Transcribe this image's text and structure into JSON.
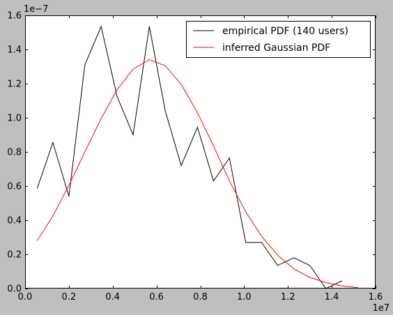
{
  "figure": {
    "background": "#bfbfbf",
    "axes_background": "#ffffff"
  },
  "chart_data": {
    "type": "line",
    "title": "",
    "xlabel": "",
    "ylabel": "",
    "xlim": [
      0,
      16000000
    ],
    "ylim": [
      0,
      1.6e-07
    ],
    "x_offset_label": "1e7",
    "y_offset_label": "1e−7",
    "x_ticks": [
      0,
      2000000,
      4000000,
      6000000,
      8000000,
      10000000,
      12000000,
      14000000,
      16000000
    ],
    "x_tick_labels": [
      "0.0",
      "0.2",
      "0.4",
      "0.6",
      "0.8",
      "1.0",
      "1.2",
      "1.4",
      "1.6"
    ],
    "y_ticks": [
      0,
      2e-08,
      4e-08,
      6e-08,
      8e-08,
      1e-07,
      1.2e-07,
      1.4e-07,
      1.6e-07
    ],
    "y_tick_labels": [
      "0.0",
      "0.2",
      "0.4",
      "0.6",
      "0.8",
      "1.0",
      "1.2",
      "1.4",
      "1.6"
    ],
    "grid": false,
    "legend": {
      "location": "top-right"
    },
    "series": [
      {
        "name": "empirical PDF (140 users)",
        "color": "#000000",
        "x": [
          550000,
          1270000,
          2000000,
          2730000,
          3470000,
          4200000,
          4930000,
          5670000,
          6400000,
          7130000,
          7870000,
          8600000,
          9330000,
          10070000,
          10800000,
          11530000,
          12270000,
          13000000,
          13730000,
          14470000
        ],
        "y": [
          5.85e-08,
          8.55e-08,
          5.4e-08,
          1.31e-07,
          1.535e-07,
          1.125e-07,
          9e-08,
          1.535e-07,
          1.04e-07,
          7.2e-08,
          9.45e-08,
          6.3e-08,
          7.65e-08,
          2.7e-08,
          2.7e-08,
          1.35e-08,
          1.8e-08,
          1.35e-08,
          0.0,
          4.5e-09
        ]
      },
      {
        "name": "inferred Gaussian PDF",
        "color": "#ff0000",
        "x": [
          550000,
          1270000,
          2000000,
          2730000,
          3470000,
          4200000,
          4930000,
          5670000,
          6400000,
          7130000,
          7870000,
          8600000,
          9330000,
          10070000,
          10800000,
          11530000,
          12270000,
          13000000,
          13730000,
          14470000,
          15200000
        ],
        "y": [
          2.8e-08,
          4.25e-08,
          6.05e-08,
          8e-08,
          9.95e-08,
          1.165e-07,
          1.285e-07,
          1.34e-07,
          1.305e-07,
          1.195e-07,
          1.03e-07,
          8.35e-08,
          6.3e-08,
          4.5e-08,
          3.05e-08,
          1.95e-08,
          1.15e-08,
          6.5e-09,
          3.5e-09,
          1.5e-09,
          5e-10
        ]
      }
    ]
  }
}
